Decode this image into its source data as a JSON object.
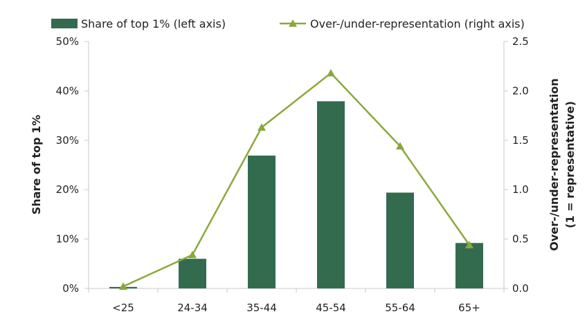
{
  "chart_data": {
    "type": "bar",
    "categories": [
      "<25",
      "24-34",
      "35-44",
      "45-54",
      "55-64",
      "65+"
    ],
    "series": [
      {
        "name": "Share of top 1% (left axis)",
        "type": "bar",
        "axis": "left",
        "color": "#336b4f",
        "values": [
          0.3,
          6.0,
          26.9,
          37.9,
          19.4,
          9.2
        ]
      },
      {
        "name": "Over-/under-representation (right axis)",
        "type": "line",
        "axis": "right",
        "color": "#8aa83a",
        "marker": "triangle",
        "values": [
          0.02,
          0.34,
          1.63,
          2.18,
          1.44,
          0.44
        ]
      }
    ],
    "yleft": {
      "label": "Share of top 1%",
      "lim": [
        0,
        50
      ],
      "ticks": [
        0,
        10,
        20,
        30,
        40,
        50
      ],
      "tick_labels": [
        "0%",
        "10%",
        "20%",
        "30%",
        "40%",
        "50%"
      ]
    },
    "yright": {
      "label_lines": [
        "Over-/under-representation",
        "(1 = representative)"
      ],
      "lim": [
        0,
        2.5
      ],
      "ticks": [
        0,
        0.5,
        1,
        1.5,
        2,
        2.5
      ],
      "tick_labels": [
        "0.0",
        "0.5",
        "1.0",
        "1.5",
        "2.0",
        "2.5"
      ]
    },
    "grid": false,
    "legend_position": "top"
  }
}
